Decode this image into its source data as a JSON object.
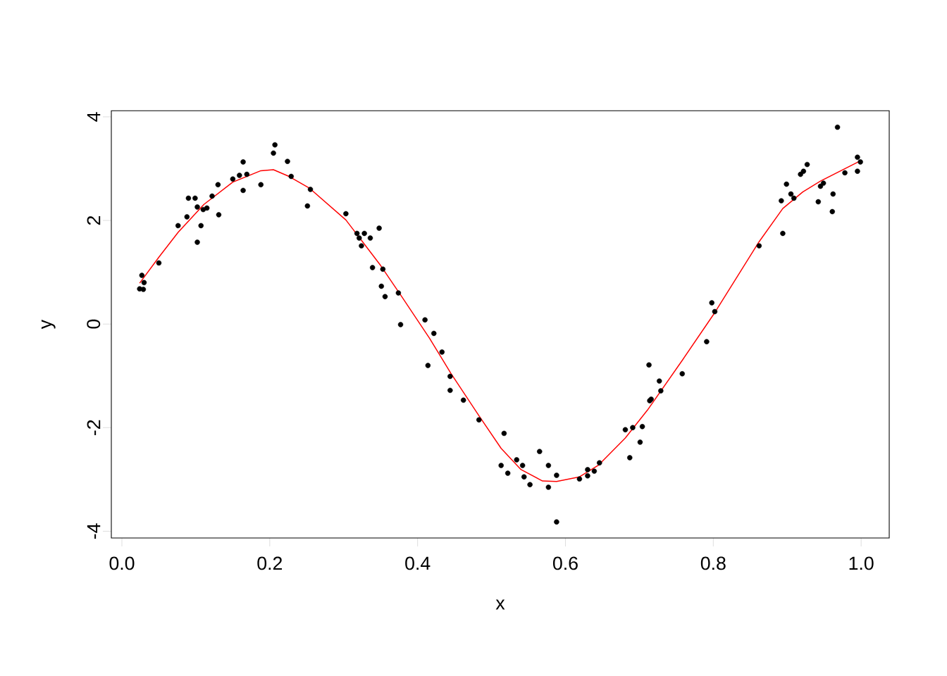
{
  "chart_data": {
    "type": "scatter",
    "xlabel": "x",
    "ylabel": "y",
    "xlim": [
      -0.0143,
      1.038
    ],
    "ylim": [
      -4.13,
      4.117
    ],
    "xticks": [
      {
        "value": 0,
        "label": "0.0"
      },
      0.2,
      0.4,
      0.6,
      0.8,
      {
        "value": 1,
        "label": "1.0"
      }
    ],
    "yticks": [
      -4,
      -2,
      0,
      2,
      4
    ],
    "series": [
      {
        "type": "scatter",
        "color": "#000000",
        "marker": "circle",
        "x": [
          0.024,
          0.027,
          0.03,
          0.029,
          0.05,
          0.076,
          0.088,
          0.09,
          0.099,
          0.102,
          0.102,
          0.107,
          0.11,
          0.115,
          0.122,
          0.13,
          0.131,
          0.15,
          0.159,
          0.164,
          0.164,
          0.169,
          0.188,
          0.205,
          0.207,
          0.224,
          0.229,
          0.251,
          0.255,
          0.303,
          0.318,
          0.321,
          0.324,
          0.328,
          0.336,
          0.339,
          0.348,
          0.351,
          0.353,
          0.356,
          0.374,
          0.377,
          0.41,
          0.414,
          0.422,
          0.433,
          0.444,
          0.444,
          0.462,
          0.483,
          0.513,
          0.517,
          0.522,
          0.534,
          0.542,
          0.544,
          0.552,
          0.565,
          0.577,
          0.577,
          0.588,
          0.588,
          0.619,
          0.63,
          0.63,
          0.639,
          0.646,
          0.681,
          0.687,
          0.691,
          0.701,
          0.704,
          0.713,
          0.714,
          0.716,
          0.727,
          0.729,
          0.758,
          0.791,
          0.798,
          0.802,
          0.862,
          0.892,
          0.894,
          0.899,
          0.905,
          0.909,
          0.918,
          0.922,
          0.927,
          0.942,
          0.945,
          0.949,
          0.961,
          0.962,
          0.968,
          0.978,
          0.995,
          0.995,
          0.999
        ],
        "values": [
          0.68,
          0.94,
          0.8,
          0.67,
          1.18,
          1.9,
          2.07,
          2.43,
          2.43,
          2.26,
          1.58,
          1.9,
          2.21,
          2.24,
          2.47,
          2.69,
          2.11,
          2.8,
          2.87,
          3.13,
          2.58,
          2.89,
          2.69,
          3.3,
          3.46,
          3.14,
          2.85,
          2.28,
          2.6,
          2.13,
          1.75,
          1.66,
          1.51,
          1.75,
          1.66,
          1.09,
          1.85,
          0.73,
          1.06,
          0.53,
          0.6,
          -0.01,
          0.08,
          -0.8,
          -0.18,
          -0.54,
          -1.01,
          -1.28,
          -1.47,
          -1.85,
          -2.73,
          -2.11,
          -2.88,
          -2.62,
          -2.73,
          -2.95,
          -3.1,
          -2.46,
          -2.73,
          -3.15,
          -2.92,
          -3.82,
          -2.99,
          -2.81,
          -2.93,
          -2.84,
          -2.68,
          -2.04,
          -2.58,
          -2.0,
          -2.28,
          -1.98,
          -0.79,
          -1.48,
          -1.45,
          -1.1,
          -1.29,
          -0.96,
          -0.34,
          0.41,
          0.24,
          1.51,
          2.38,
          1.75,
          2.7,
          2.51,
          2.43,
          2.89,
          2.95,
          3.08,
          2.36,
          2.66,
          2.72,
          2.17,
          2.51,
          3.8,
          2.92,
          3.22,
          2.95,
          3.13
        ]
      },
      {
        "type": "line",
        "color": "#ff0000",
        "x": [
          0.024,
          0.05,
          0.076,
          0.111,
          0.15,
          0.188,
          0.205,
          0.226,
          0.254,
          0.303,
          0.35,
          0.378,
          0.416,
          0.445,
          0.483,
          0.513,
          0.54,
          0.569,
          0.588,
          0.619,
          0.645,
          0.681,
          0.711,
          0.759,
          0.802,
          0.862,
          0.894,
          0.921,
          0.945,
          0.999
        ],
        "values": [
          0.79,
          1.29,
          1.77,
          2.31,
          2.74,
          2.96,
          2.98,
          2.85,
          2.62,
          2.01,
          1.13,
          0.54,
          -0.27,
          -0.95,
          -1.77,
          -2.4,
          -2.81,
          -3.03,
          -3.04,
          -2.95,
          -2.72,
          -2.2,
          -1.66,
          -0.68,
          0.22,
          1.59,
          2.23,
          2.55,
          2.76,
          3.15
        ]
      }
    ]
  }
}
